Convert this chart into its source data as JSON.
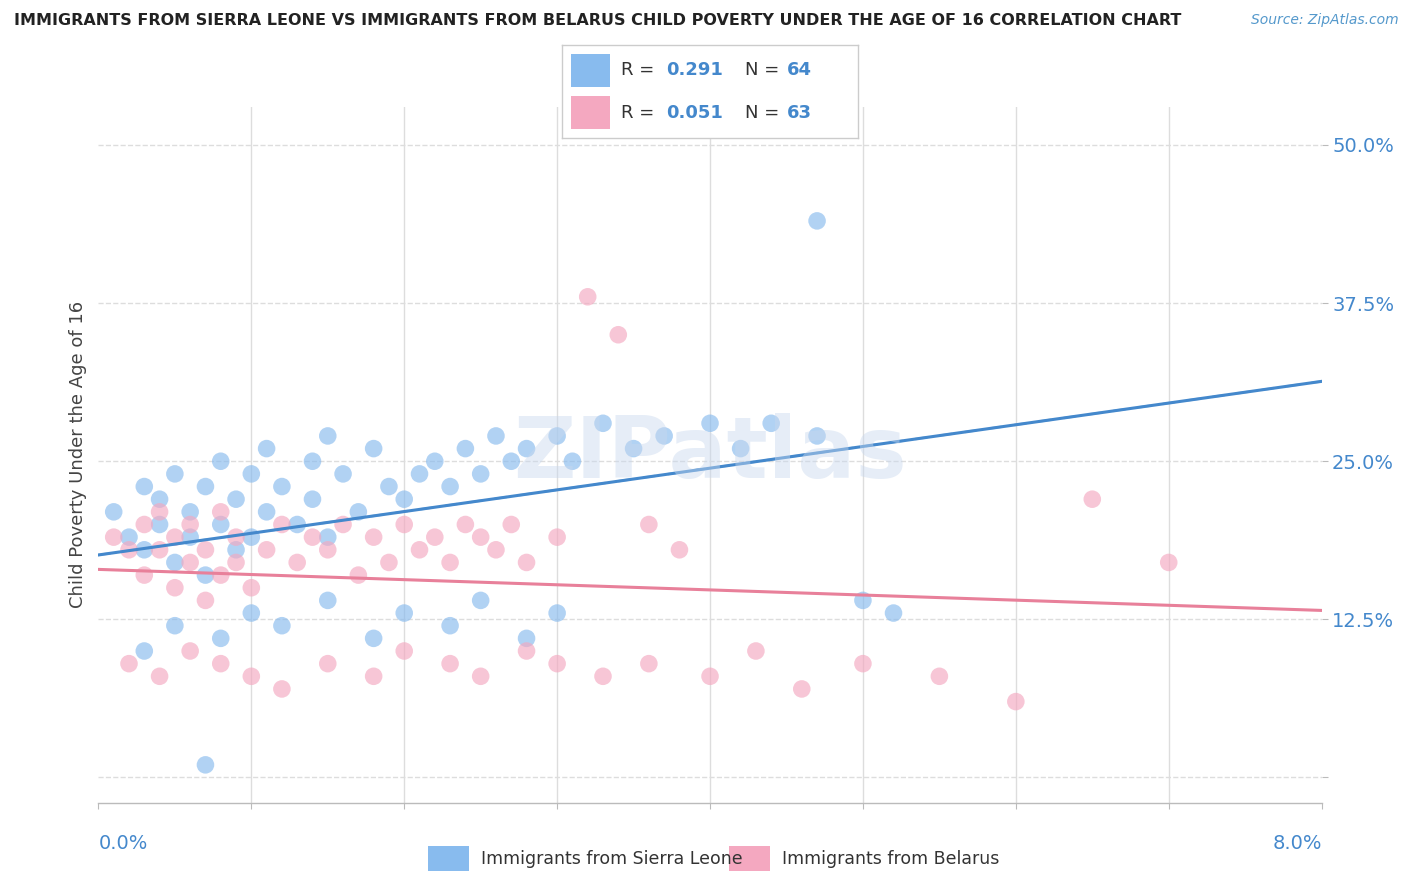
{
  "title": "IMMIGRANTS FROM SIERRA LEONE VS IMMIGRANTS FROM BELARUS CHILD POVERTY UNDER THE AGE OF 16 CORRELATION CHART",
  "source": "Source: ZipAtlas.com",
  "ylabel": "Child Poverty Under the Age of 16",
  "ytick_vals": [
    0.0,
    0.125,
    0.25,
    0.375,
    0.5
  ],
  "ytick_labels": [
    "",
    "12.5%",
    "25.0%",
    "37.5%",
    "50.0%"
  ],
  "xlim": [
    0.0,
    0.08
  ],
  "ylim": [
    -0.02,
    0.53
  ],
  "watermark": "ZIPatlas",
  "legend_R1": "0.291",
  "legend_N1": "64",
  "legend_R2": "0.051",
  "legend_N2": "63",
  "label_sierra": "Immigrants from Sierra Leone",
  "label_belarus": "Immigrants from Belarus",
  "color_sierra": "#88bbee",
  "color_belarus": "#f4a8c0",
  "color_sierra_line": "#4488cc",
  "color_belarus_line": "#e8809a",
  "color_dashed": "#aaccee",
  "background_color": "#ffffff",
  "grid_color": "#dddddd",
  "sierra_x": [
    0.001,
    0.002,
    0.003,
    0.003,
    0.004,
    0.004,
    0.005,
    0.005,
    0.006,
    0.006,
    0.007,
    0.007,
    0.008,
    0.008,
    0.009,
    0.009,
    0.01,
    0.01,
    0.011,
    0.011,
    0.012,
    0.013,
    0.014,
    0.014,
    0.015,
    0.015,
    0.016,
    0.017,
    0.018,
    0.019,
    0.02,
    0.021,
    0.022,
    0.023,
    0.024,
    0.025,
    0.026,
    0.027,
    0.028,
    0.03,
    0.031,
    0.033,
    0.035,
    0.037,
    0.04,
    0.042,
    0.044,
    0.047,
    0.05,
    0.052,
    0.003,
    0.005,
    0.008,
    0.01,
    0.012,
    0.015,
    0.018,
    0.02,
    0.023,
    0.025,
    0.028,
    0.03,
    0.007,
    0.047
  ],
  "sierra_y": [
    0.21,
    0.19,
    0.23,
    0.18,
    0.2,
    0.22,
    0.17,
    0.24,
    0.19,
    0.21,
    0.16,
    0.23,
    0.2,
    0.25,
    0.18,
    0.22,
    0.19,
    0.24,
    0.21,
    0.26,
    0.23,
    0.2,
    0.25,
    0.22,
    0.27,
    0.19,
    0.24,
    0.21,
    0.26,
    0.23,
    0.22,
    0.24,
    0.25,
    0.23,
    0.26,
    0.24,
    0.27,
    0.25,
    0.26,
    0.27,
    0.25,
    0.28,
    0.26,
    0.27,
    0.28,
    0.26,
    0.28,
    0.27,
    0.14,
    0.13,
    0.1,
    0.12,
    0.11,
    0.13,
    0.12,
    0.14,
    0.11,
    0.13,
    0.12,
    0.14,
    0.11,
    0.13,
    0.01,
    0.44
  ],
  "belarus_x": [
    0.001,
    0.002,
    0.003,
    0.003,
    0.004,
    0.004,
    0.005,
    0.005,
    0.006,
    0.006,
    0.007,
    0.007,
    0.008,
    0.008,
    0.009,
    0.009,
    0.01,
    0.011,
    0.012,
    0.013,
    0.014,
    0.015,
    0.016,
    0.017,
    0.018,
    0.019,
    0.02,
    0.021,
    0.022,
    0.023,
    0.024,
    0.025,
    0.026,
    0.027,
    0.028,
    0.03,
    0.032,
    0.034,
    0.036,
    0.038,
    0.002,
    0.004,
    0.006,
    0.008,
    0.01,
    0.012,
    0.015,
    0.018,
    0.02,
    0.023,
    0.025,
    0.028,
    0.03,
    0.033,
    0.036,
    0.04,
    0.043,
    0.046,
    0.05,
    0.055,
    0.06,
    0.065,
    0.07
  ],
  "belarus_y": [
    0.19,
    0.18,
    0.2,
    0.16,
    0.18,
    0.21,
    0.15,
    0.19,
    0.17,
    0.2,
    0.14,
    0.18,
    0.16,
    0.21,
    0.17,
    0.19,
    0.15,
    0.18,
    0.2,
    0.17,
    0.19,
    0.18,
    0.2,
    0.16,
    0.19,
    0.17,
    0.2,
    0.18,
    0.19,
    0.17,
    0.2,
    0.19,
    0.18,
    0.2,
    0.17,
    0.19,
    0.38,
    0.35,
    0.2,
    0.18,
    0.09,
    0.08,
    0.1,
    0.09,
    0.08,
    0.07,
    0.09,
    0.08,
    0.1,
    0.09,
    0.08,
    0.1,
    0.09,
    0.08,
    0.09,
    0.08,
    0.1,
    0.07,
    0.09,
    0.08,
    0.06,
    0.22,
    0.17
  ]
}
